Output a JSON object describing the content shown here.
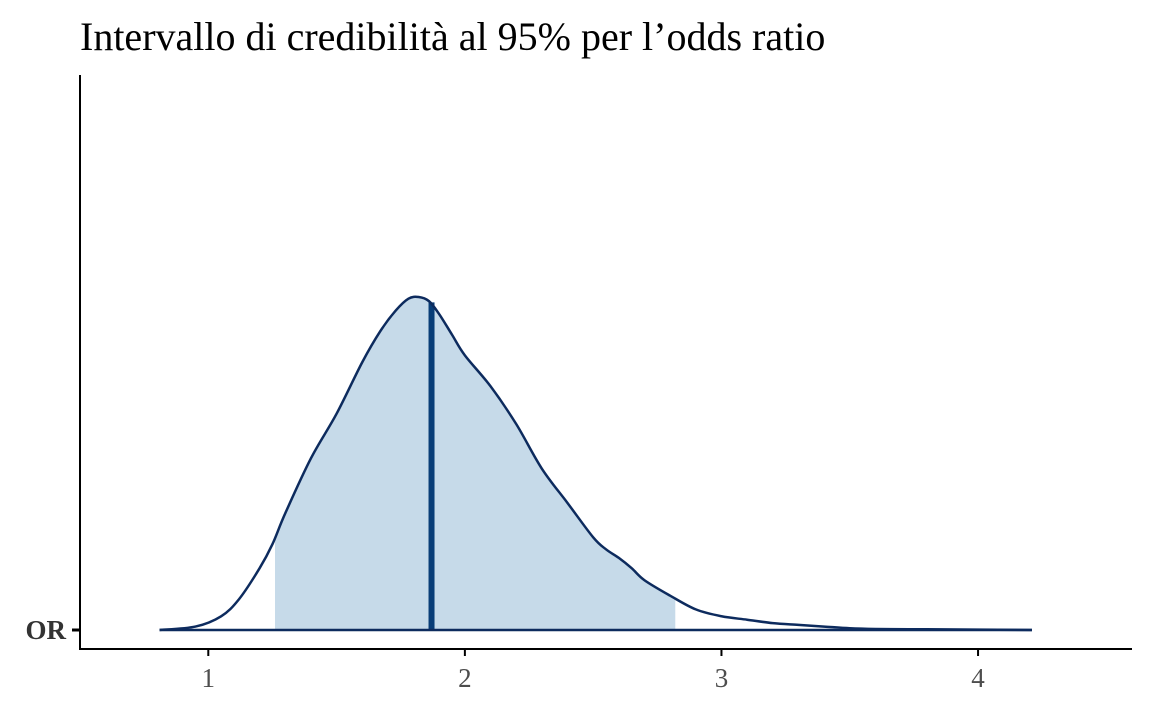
{
  "chart_data": {
    "type": "area",
    "title": "Intervallo di credibilità al 95% per l’odds ratio",
    "xlabel": "",
    "ylabel": "",
    "xlim": [
      0.5,
      4.6
    ],
    "xticks": [
      1,
      2,
      3,
      4
    ],
    "xtick_labels": [
      "1",
      "2",
      "3",
      "4"
    ],
    "y_categories": [
      "OR"
    ],
    "grid": false,
    "legend": "none",
    "series": [
      {
        "kind": "posterior_density",
        "x": [
          0.81,
          0.95,
          1.05,
          1.12,
          1.2,
          1.25,
          1.3,
          1.4,
          1.5,
          1.6,
          1.67,
          1.73,
          1.78,
          1.82,
          1.86,
          1.9,
          1.95,
          2.0,
          2.1,
          2.2,
          2.3,
          2.4,
          2.5,
          2.55,
          2.6,
          2.65,
          2.7,
          2.8,
          2.9,
          3.0,
          3.1,
          3.2,
          3.3,
          3.4,
          3.5,
          3.6,
          3.8,
          4.0,
          4.21
        ],
        "density": [
          0.0,
          0.01,
          0.04,
          0.09,
          0.18,
          0.25,
          0.34,
          0.5,
          0.63,
          0.78,
          0.87,
          0.93,
          0.965,
          0.97,
          0.958,
          0.92,
          0.86,
          0.8,
          0.71,
          0.6,
          0.47,
          0.37,
          0.27,
          0.235,
          0.21,
          0.18,
          0.145,
          0.1,
          0.06,
          0.04,
          0.03,
          0.02,
          0.015,
          0.01,
          0.005,
          0.003,
          0.002,
          0.001,
          0.0
        ]
      }
    ],
    "credible_interval": {
      "level": 0.95,
      "lower": 1.26,
      "upper": 2.82
    },
    "point_estimate": 1.87,
    "colors": {
      "density_line": "#0d2b5e",
      "interval_fill": "#c6dae9",
      "estimate_line": "#083d77",
      "axis": "#000000",
      "tick_label": "#4d4d4d",
      "y_tick_label": "#333333"
    }
  }
}
